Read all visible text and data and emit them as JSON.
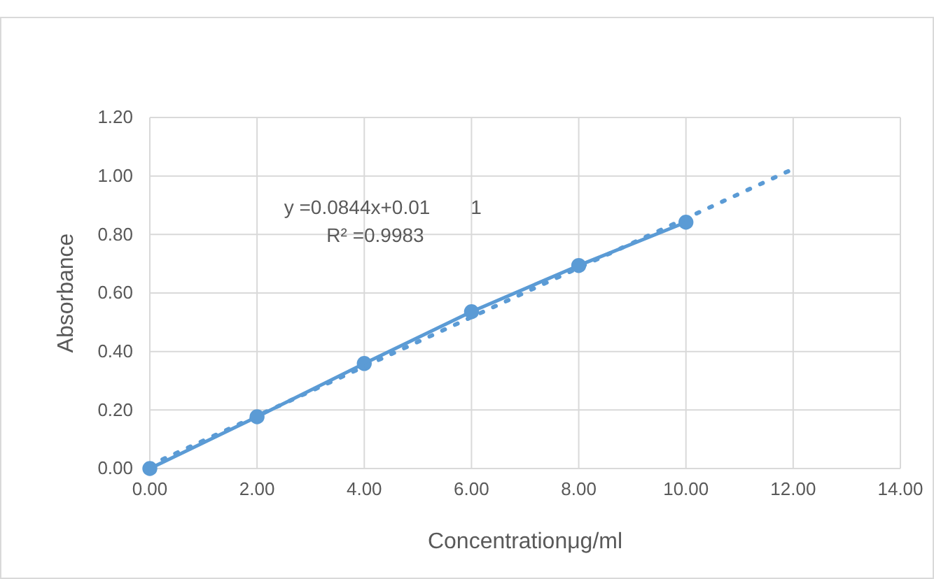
{
  "chart_data": {
    "type": "line",
    "xlabel": "Concentrationμg/ml",
    "ylabel": "Absorbance",
    "x": [
      0,
      2,
      4,
      6,
      8,
      10
    ],
    "series": [
      {
        "color": "#5b9bd5",
        "values": [
          0,
          0.177,
          0.359,
          0.536,
          0.694,
          0.842
        ],
        "marker": "circle",
        "line_style": "solid"
      },
      {
        "color": "#5b9bd5",
        "x": [
          0,
          12
        ],
        "values": [
          0.011,
          1.024
        ],
        "marker": "none",
        "line_style": "dotted"
      }
    ],
    "xlim": [
      0,
      14
    ],
    "xticks": [
      {
        "value": 0,
        "label": "0.00"
      },
      {
        "value": 2,
        "label": "2.00"
      },
      {
        "value": 4,
        "label": "4.00"
      },
      {
        "value": 6,
        "label": "6.00"
      },
      {
        "value": 8,
        "label": "8.00"
      },
      {
        "value": 10,
        "label": "10.00"
      },
      {
        "value": 12,
        "label": "12.00"
      },
      {
        "value": 14,
        "label": "14.00"
      }
    ],
    "ylim": [
      0,
      1.2
    ],
    "yticks": [
      {
        "value": 0,
        "label": "0.00"
      },
      {
        "value": 0.2,
        "label": "0.20"
      },
      {
        "value": 0.4,
        "label": "0.40"
      },
      {
        "value": 0.6,
        "label": "0.60"
      },
      {
        "value": 0.8,
        "label": "0.80"
      },
      {
        "value": 1,
        "label": "1.00"
      },
      {
        "value": 1.2,
        "label": "1.20"
      }
    ],
    "grid": true,
    "annotations": [
      "y =0.0844x+0.01",
      "1",
      "R² =0.9983"
    ]
  }
}
